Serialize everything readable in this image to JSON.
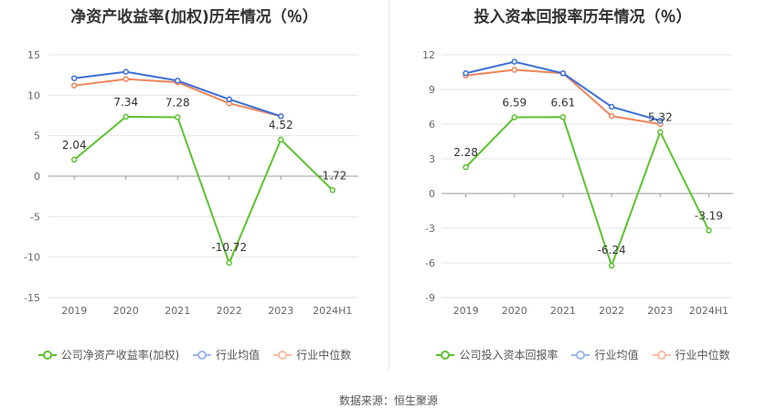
{
  "chart_data": [
    {
      "type": "line",
      "title": "净资产收益率(加权)历年情况（％）",
      "categories": [
        "2019",
        "2020",
        "2021",
        "2022",
        "2023",
        "2024H1"
      ],
      "ylim": [
        -15,
        15
      ],
      "yticks": [
        15,
        10,
        5,
        0,
        -5,
        -10,
        -15
      ],
      "ytick_labels": [
        "15",
        "10",
        "5",
        "0",
        "-5",
        "-10",
        "-15"
      ],
      "grid": true,
      "legend_position": "bottom",
      "series": [
        {
          "name": "公司净资产收益率(加权)",
          "color": "#5cc22f",
          "values": [
            2.04,
            7.34,
            7.28,
            -10.72,
            4.52,
            -1.72
          ],
          "labels": [
            "2.04",
            "7.34",
            "7.28",
            "-10.72",
            "4.52",
            "-1.72"
          ]
        },
        {
          "name": "行业均值",
          "color": "#3a6fd8",
          "values": [
            12.1,
            12.9,
            11.8,
            9.5,
            7.4,
            null
          ]
        },
        {
          "name": "行业中位数",
          "color": "#f0845a",
          "values": [
            11.2,
            12.0,
            11.6,
            9.0,
            7.4,
            null
          ]
        }
      ]
    },
    {
      "type": "line",
      "title": "投入资本回报率历年情况（％）",
      "categories": [
        "2019",
        "2020",
        "2021",
        "2022",
        "2023",
        "2024H1"
      ],
      "ylim": [
        -9,
        12
      ],
      "yticks": [
        12,
        9,
        6,
        3,
        0,
        -3,
        -6,
        -9
      ],
      "ytick_labels": [
        "12",
        "9",
        "6",
        "3",
        "0",
        "-3",
        "-6",
        "-9"
      ],
      "grid": true,
      "legend_position": "bottom",
      "series": [
        {
          "name": "公司投入资本回报率",
          "color": "#5cc22f",
          "values": [
            2.28,
            6.59,
            6.61,
            -6.24,
            5.32,
            -3.19
          ],
          "labels": [
            "2.28",
            "6.59",
            "6.61",
            "-6.24",
            "5.32",
            "-3.19"
          ]
        },
        {
          "name": "行业均值",
          "color": "#3a6fd8",
          "values": [
            10.4,
            11.4,
            10.4,
            7.5,
            6.3,
            null
          ]
        },
        {
          "name": "行业中位数",
          "color": "#f0845a",
          "values": [
            10.2,
            10.7,
            10.4,
            6.7,
            6.0,
            null
          ]
        }
      ]
    }
  ],
  "source": "数据来源：恒生聚源"
}
